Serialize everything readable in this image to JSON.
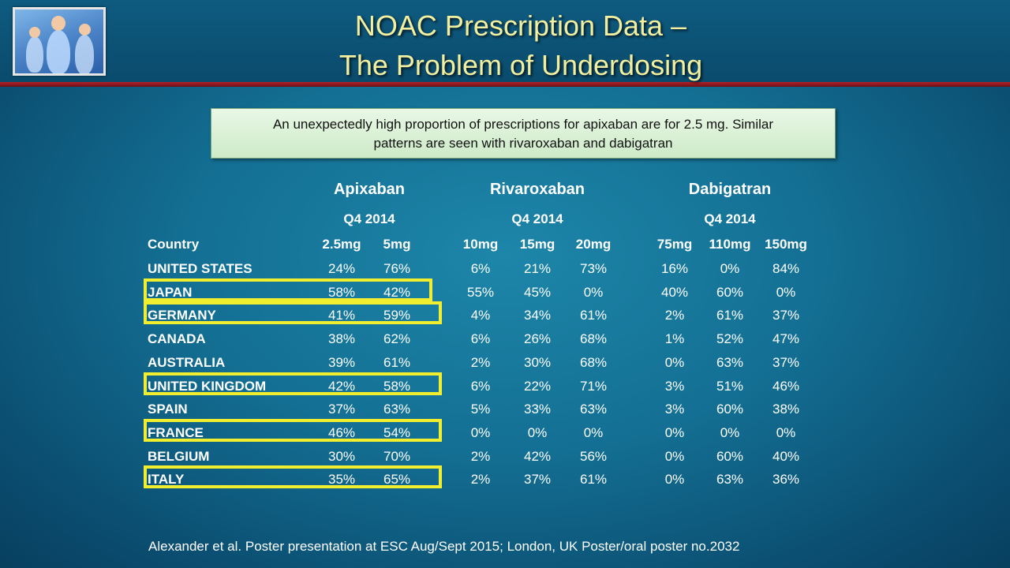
{
  "title": {
    "line1": "NOAC Prescription Data –",
    "line2": "The Problem of Underdosing"
  },
  "callout": {
    "line1": "An unexpectedly high proportion of prescriptions for apixaban are for 2.5 mg. Similar",
    "line2": "patterns are seen with rivaroxaban and dabigatran"
  },
  "table": {
    "country_header": "Country",
    "drugs": [
      {
        "name": "Apixaban",
        "period": "Q4 2014",
        "doses": [
          "2.5mg",
          "5mg"
        ]
      },
      {
        "name": "Rivaroxaban",
        "period": "Q4 2014",
        "doses": [
          "10mg",
          "15mg",
          "20mg"
        ]
      },
      {
        "name": "Dabigatran",
        "period": "Q4 2014",
        "doses": [
          "75mg",
          "110mg",
          "150mg"
        ]
      }
    ],
    "rows": [
      {
        "country": "UNITED STATES",
        "values": [
          "24%",
          "76%",
          "6%",
          "21%",
          "73%",
          "16%",
          "0%",
          "84%"
        ],
        "highlight": false
      },
      {
        "country": "JAPAN",
        "values": [
          "58%",
          "42%",
          "55%",
          "45%",
          "0%",
          "40%",
          "60%",
          "0%"
        ],
        "highlight": true
      },
      {
        "country": "GERMANY",
        "values": [
          "41%",
          "59%",
          "4%",
          "34%",
          "61%",
          "2%",
          "61%",
          "37%"
        ],
        "highlight": true
      },
      {
        "country": "CANADA",
        "values": [
          "38%",
          "62%",
          "6%",
          "26%",
          "68%",
          "1%",
          "52%",
          "47%"
        ],
        "highlight": false
      },
      {
        "country": "AUSTRALIA",
        "values": [
          "39%",
          "61%",
          "2%",
          "30%",
          "68%",
          "0%",
          "63%",
          "37%"
        ],
        "highlight": false
      },
      {
        "country": "UNITED KINGDOM",
        "values": [
          "42%",
          "58%",
          "6%",
          "22%",
          "71%",
          "3%",
          "51%",
          "46%"
        ],
        "highlight": true
      },
      {
        "country": "SPAIN",
        "values": [
          "37%",
          "63%",
          "5%",
          "33%",
          "63%",
          "3%",
          "60%",
          "38%"
        ],
        "highlight": false
      },
      {
        "country": "FRANCE",
        "values": [
          "46%",
          "54%",
          "0%",
          "0%",
          "0%",
          "0%",
          "0%",
          "0%"
        ],
        "highlight": true
      },
      {
        "country": "BELGIUM",
        "values": [
          "30%",
          "70%",
          "2%",
          "42%",
          "56%",
          "0%",
          "60%",
          "40%"
        ],
        "highlight": false
      },
      {
        "country": "ITALY",
        "values": [
          "35%",
          "65%",
          "2%",
          "37%",
          "61%",
          "0%",
          "63%",
          "36%"
        ],
        "highlight": true
      }
    ]
  },
  "footer": {
    "citation": "Alexander et al. Poster presentation at  ESC Aug/Sept 2015; London, UK Poster/oral poster no.2032"
  },
  "colors": {
    "title_text": "#f2f0a0",
    "highlight_box": "#f0ee2e",
    "header_rule": "#b3202a",
    "callout_bg": "#dff3dc"
  },
  "icons": {
    "logo": "medical-figures-logo"
  }
}
